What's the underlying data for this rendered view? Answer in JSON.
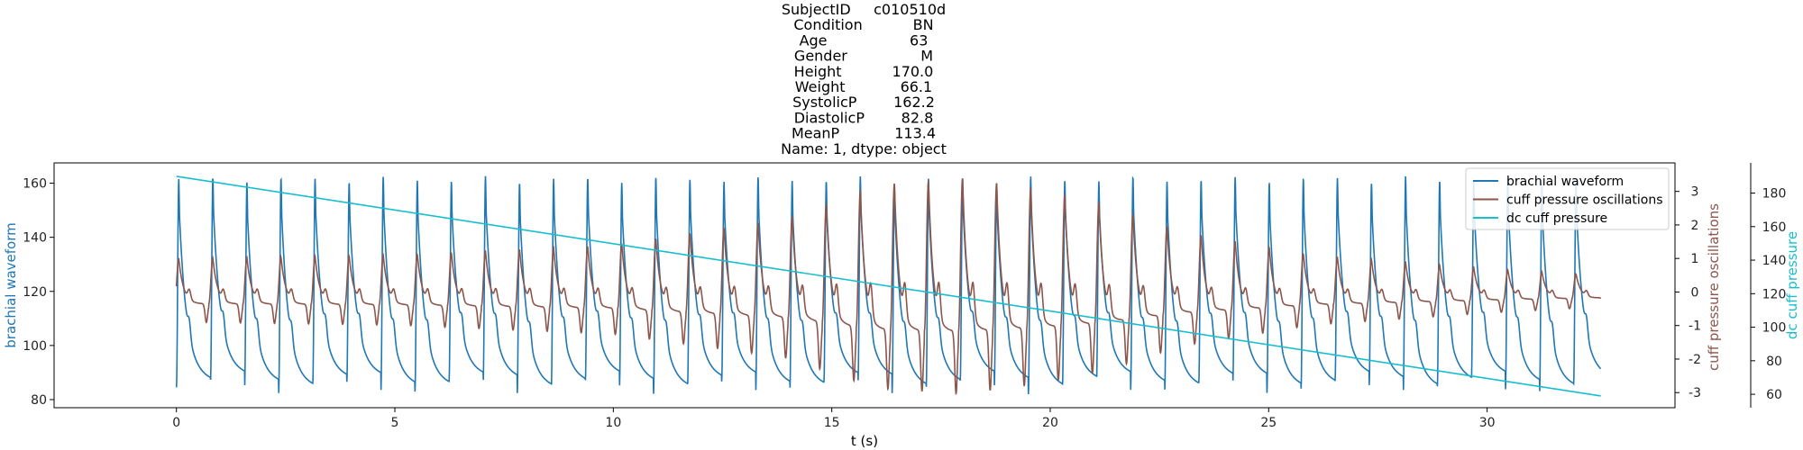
{
  "title_lines": [
    "SubjectID     c010510d",
    "Condition           BN",
    "Age                  63",
    "Gender                M",
    "Height           170.0",
    "Weight            66.1",
    "SystolicP        162.2",
    "DiastolicP        82.8",
    "MeanP            113.4",
    "Name: 1, dtype: object"
  ],
  "chart_data": {
    "type": "line",
    "xlabel": "t (s)",
    "xlim": [
      -2.8,
      34.3
    ],
    "xticks": [
      0,
      5,
      10,
      15,
      20,
      25,
      30
    ],
    "beat": {
      "period_s": 0.78,
      "duration_s": 32.6,
      "n_beats": 42
    },
    "axes": {
      "left": {
        "label": "brachial waveform",
        "color": "#1f77b4",
        "ylim": [
          77,
          167.5
        ],
        "ticks": [
          80,
          100,
          120,
          140,
          160
        ]
      },
      "right": {
        "label": "cuff pressure oscillations",
        "color": "#8c564b",
        "ylim": [
          -3.45,
          3.85
        ],
        "ticks": [
          -3,
          -2,
          -1,
          0,
          1,
          2,
          3
        ]
      },
      "far_right": {
        "label": "dc cuff pressure",
        "color": "#17becf",
        "ylim": [
          52,
          198
        ],
        "ticks": [
          60,
          80,
          100,
          120,
          140,
          160,
          180
        ]
      }
    },
    "series": [
      {
        "name": "brachial waveform",
        "axis": "left",
        "color": "#1f77b4",
        "waveform": {
          "diastolic": 82.8,
          "systolic": 162.2,
          "min_range": [
            83,
            89
          ],
          "peak_range": [
            160,
            163
          ]
        }
      },
      {
        "name": "cuff pressure oscillations",
        "axis": "right",
        "color": "#8c564b",
        "peak_amplitude_by_time": {
          "t": [
            0,
            5,
            10,
            14,
            16,
            18,
            20,
            21.3,
            23,
            26,
            28,
            30,
            32.6
          ],
          "amp": [
            1.0,
            1.1,
            1.4,
            2.2,
            3.2,
            3.4,
            3.0,
            2.6,
            1.8,
            1.1,
            0.9,
            0.7,
            0.5
          ]
        }
      },
      {
        "name": "dc cuff pressure",
        "axis": "far_right",
        "color": "#17becf",
        "x": [
          0,
          32.6
        ],
        "y": [
          190,
          59
        ]
      }
    ],
    "legend": {
      "position": "top-right",
      "entries": [
        "brachial waveform",
        "cuff pressure oscillations",
        "dc cuff pressure"
      ]
    }
  }
}
